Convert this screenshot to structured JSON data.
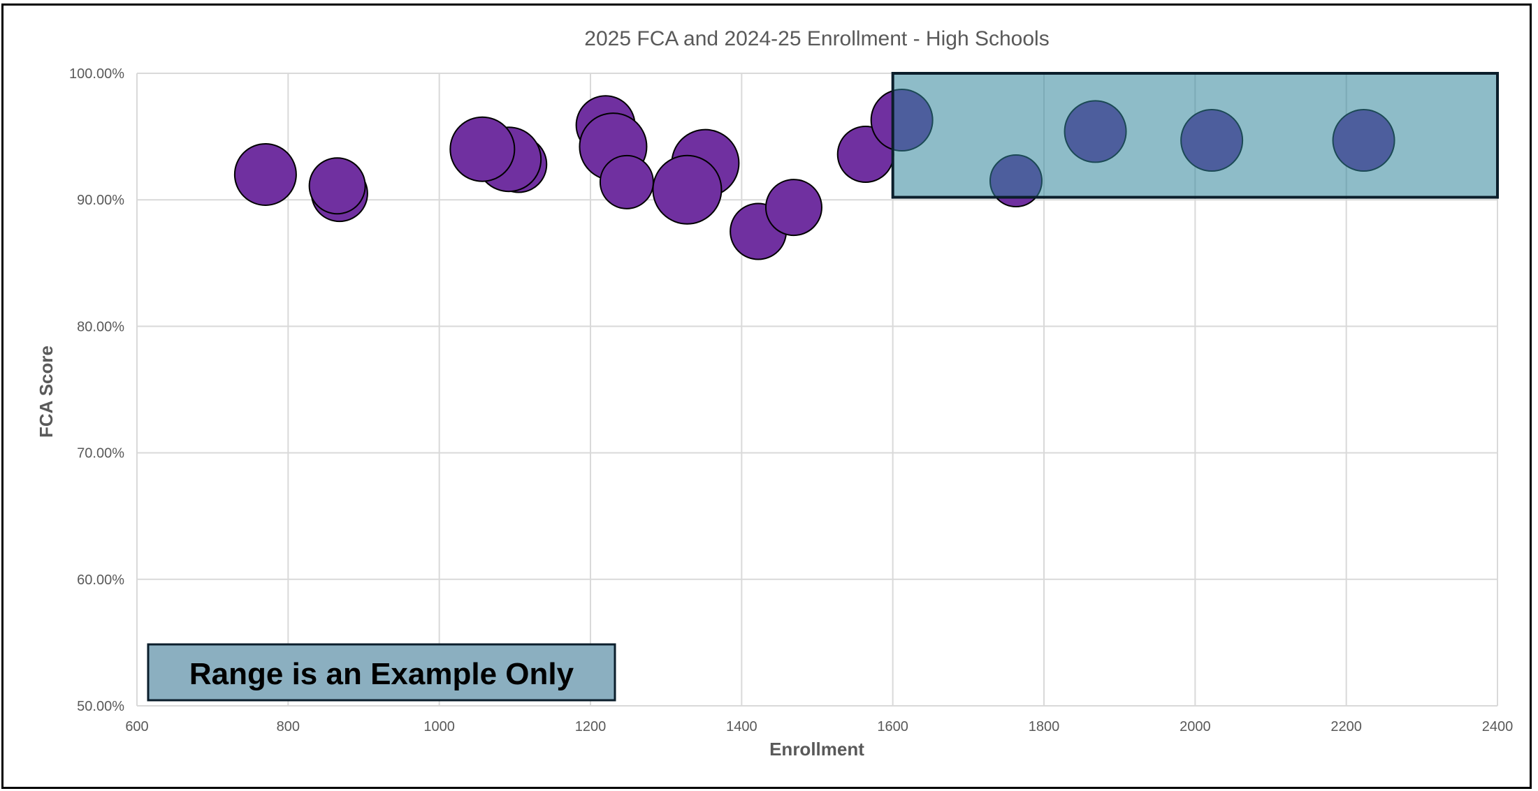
{
  "chart_data": {
    "type": "scatter",
    "title": "2025 FCA and 2024-25 Enrollment - High Schools",
    "xlabel": "Enrollment",
    "ylabel": "FCA Score",
    "xlim": [
      600,
      2400
    ],
    "ylim": [
      0.5,
      1.0
    ],
    "x_ticks": [
      600,
      800,
      1000,
      1200,
      1400,
      1600,
      1800,
      2000,
      2200,
      2400
    ],
    "x_tick_labels": [
      "600",
      "800",
      "1000",
      "1200",
      "1400",
      "1600",
      "1800",
      "2000",
      "2200",
      "2400"
    ],
    "y_ticks": [
      0.5,
      0.6,
      0.7,
      0.8,
      0.9,
      1.0
    ],
    "y_tick_labels": [
      "50.00%",
      "60.00%",
      "70.00%",
      "80.00%",
      "90.00%",
      "100.00%"
    ],
    "grid": true,
    "legend": "none",
    "colors": {
      "bubble_fill": "#7030A0",
      "bubble_stroke": "#000000",
      "highlight_fill": "#31859B",
      "highlight_stroke": "#0B1E2B",
      "note_fill": "#8BAFC0",
      "grid": "#D9D9D9"
    },
    "points": [
      {
        "x": 770,
        "y": 0.92,
        "r": 44
      },
      {
        "x": 868,
        "y": 0.905,
        "r": 40
      },
      {
        "x": 865,
        "y": 0.911,
        "r": 40
      },
      {
        "x": 1105,
        "y": 0.928,
        "r": 40
      },
      {
        "x": 1092,
        "y": 0.932,
        "r": 46
      },
      {
        "x": 1057,
        "y": 0.94,
        "r": 46
      },
      {
        "x": 1220,
        "y": 0.959,
        "r": 42
      },
      {
        "x": 1230,
        "y": 0.942,
        "r": 48
      },
      {
        "x": 1248,
        "y": 0.914,
        "r": 38
      },
      {
        "x": 1352,
        "y": 0.929,
        "r": 48
      },
      {
        "x": 1328,
        "y": 0.908,
        "r": 49
      },
      {
        "x": 1422,
        "y": 0.875,
        "r": 40
      },
      {
        "x": 1469,
        "y": 0.894,
        "r": 40
      },
      {
        "x": 1564,
        "y": 0.936,
        "r": 40
      },
      {
        "x": 1612,
        "y": 0.963,
        "r": 44
      },
      {
        "x": 1763,
        "y": 0.915,
        "r": 37
      },
      {
        "x": 1868,
        "y": 0.954,
        "r": 44
      },
      {
        "x": 2022,
        "y": 0.947,
        "r": 44
      },
      {
        "x": 2223,
        "y": 0.947,
        "r": 44
      }
    ],
    "highlight_range": {
      "x": [
        1600,
        2400
      ],
      "y": [
        0.902,
        1.0
      ]
    },
    "annotation": "Range is an Example Only"
  }
}
